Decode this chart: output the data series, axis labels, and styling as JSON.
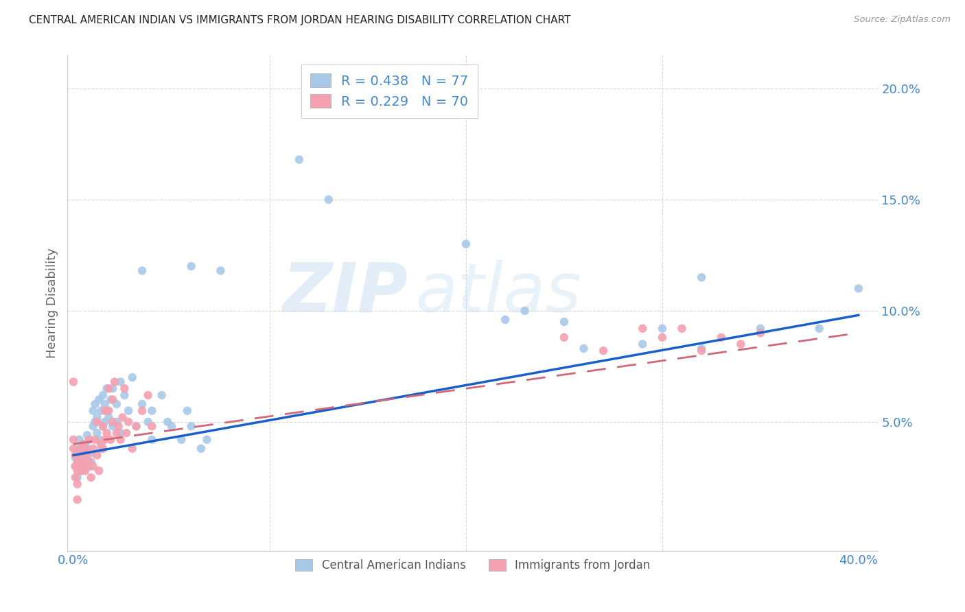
{
  "title": "CENTRAL AMERICAN INDIAN VS IMMIGRANTS FROM JORDAN HEARING DISABILITY CORRELATION CHART",
  "source": "Source: ZipAtlas.com",
  "ylabel": "Hearing Disability",
  "ytick_vals": [
    0.05,
    0.1,
    0.15,
    0.2
  ],
  "ytick_labels": [
    "5.0%",
    "10.0%",
    "15.0%",
    "20.0%"
  ],
  "xlim": [
    -0.003,
    0.41
  ],
  "ylim": [
    -0.008,
    0.215
  ],
  "legend_r1": "R = 0.438",
  "legend_n1": "N = 77",
  "legend_r2": "R = 0.229",
  "legend_n2": "N = 70",
  "color_blue": "#a8c8e8",
  "color_pink": "#f4a0b0",
  "color_line_blue": "#1a5fc8",
  "color_line_pink": "#d06878",
  "watermark_zip": "ZIP",
  "watermark_atlas": "atlas",
  "background": "#ffffff",
  "grid_color": "#d8d8d8",
  "tick_color": "#4488cc",
  "blue_scatter": [
    [
      0.001,
      0.034
    ],
    [
      0.002,
      0.036
    ],
    [
      0.003,
      0.038
    ],
    [
      0.003,
      0.042
    ],
    [
      0.004,
      0.032
    ],
    [
      0.004,
      0.028
    ],
    [
      0.005,
      0.034
    ],
    [
      0.005,
      0.03
    ],
    [
      0.006,
      0.036
    ],
    [
      0.006,
      0.04
    ],
    [
      0.007,
      0.038
    ],
    [
      0.007,
      0.044
    ],
    [
      0.008,
      0.03
    ],
    [
      0.008,
      0.042
    ],
    [
      0.009,
      0.036
    ],
    [
      0.009,
      0.032
    ],
    [
      0.01,
      0.048
    ],
    [
      0.01,
      0.055
    ],
    [
      0.011,
      0.05
    ],
    [
      0.011,
      0.058
    ],
    [
      0.012,
      0.052
    ],
    [
      0.012,
      0.045
    ],
    [
      0.013,
      0.06
    ],
    [
      0.013,
      0.042
    ],
    [
      0.014,
      0.055
    ],
    [
      0.014,
      0.038
    ],
    [
      0.015,
      0.062
    ],
    [
      0.015,
      0.048
    ],
    [
      0.016,
      0.058
    ],
    [
      0.016,
      0.05
    ],
    [
      0.017,
      0.065
    ],
    [
      0.017,
      0.055
    ],
    [
      0.018,
      0.052
    ],
    [
      0.019,
      0.06
    ],
    [
      0.02,
      0.065
    ],
    [
      0.02,
      0.048
    ],
    [
      0.022,
      0.058
    ],
    [
      0.022,
      0.05
    ],
    [
      0.024,
      0.068
    ],
    [
      0.024,
      0.045
    ],
    [
      0.026,
      0.062
    ],
    [
      0.028,
      0.055
    ],
    [
      0.03,
      0.07
    ],
    [
      0.032,
      0.048
    ],
    [
      0.035,
      0.058
    ],
    [
      0.038,
      0.05
    ],
    [
      0.04,
      0.055
    ],
    [
      0.04,
      0.042
    ],
    [
      0.045,
      0.062
    ],
    [
      0.048,
      0.05
    ],
    [
      0.05,
      0.048
    ],
    [
      0.055,
      0.042
    ],
    [
      0.058,
      0.055
    ],
    [
      0.06,
      0.048
    ],
    [
      0.065,
      0.038
    ],
    [
      0.068,
      0.042
    ],
    [
      0.002,
      0.025
    ],
    [
      0.001,
      0.03
    ],
    [
      0.06,
      0.12
    ],
    [
      0.075,
      0.118
    ],
    [
      0.115,
      0.168
    ],
    [
      0.13,
      0.15
    ],
    [
      0.2,
      0.13
    ],
    [
      0.22,
      0.096
    ],
    [
      0.23,
      0.1
    ],
    [
      0.25,
      0.095
    ],
    [
      0.26,
      0.083
    ],
    [
      0.29,
      0.085
    ],
    [
      0.3,
      0.092
    ],
    [
      0.32,
      0.115
    ],
    [
      0.32,
      0.083
    ],
    [
      0.35,
      0.092
    ],
    [
      0.38,
      0.092
    ],
    [
      0.4,
      0.11
    ],
    [
      0.035,
      0.118
    ]
  ],
  "pink_scatter": [
    [
      0.0,
      0.042
    ],
    [
      0.0,
      0.038
    ],
    [
      0.001,
      0.035
    ],
    [
      0.001,
      0.03
    ],
    [
      0.001,
      0.025
    ],
    [
      0.002,
      0.032
    ],
    [
      0.002,
      0.022
    ],
    [
      0.002,
      0.028
    ],
    [
      0.003,
      0.03
    ],
    [
      0.003,
      0.035
    ],
    [
      0.004,
      0.038
    ],
    [
      0.004,
      0.028
    ],
    [
      0.005,
      0.04
    ],
    [
      0.005,
      0.032
    ],
    [
      0.006,
      0.038
    ],
    [
      0.006,
      0.028
    ],
    [
      0.007,
      0.035
    ],
    [
      0.007,
      0.03
    ],
    [
      0.008,
      0.042
    ],
    [
      0.008,
      0.032
    ],
    [
      0.009,
      0.025
    ],
    [
      0.01,
      0.038
    ],
    [
      0.01,
      0.03
    ],
    [
      0.011,
      0.042
    ],
    [
      0.012,
      0.05
    ],
    [
      0.012,
      0.035
    ],
    [
      0.013,
      0.028
    ],
    [
      0.014,
      0.04
    ],
    [
      0.015,
      0.048
    ],
    [
      0.015,
      0.038
    ],
    [
      0.016,
      0.055
    ],
    [
      0.016,
      0.042
    ],
    [
      0.017,
      0.045
    ],
    [
      0.018,
      0.065
    ],
    [
      0.018,
      0.055
    ],
    [
      0.019,
      0.042
    ],
    [
      0.02,
      0.06
    ],
    [
      0.02,
      0.05
    ],
    [
      0.021,
      0.068
    ],
    [
      0.022,
      0.045
    ],
    [
      0.023,
      0.048
    ],
    [
      0.024,
      0.042
    ],
    [
      0.025,
      0.052
    ],
    [
      0.026,
      0.065
    ],
    [
      0.027,
      0.045
    ],
    [
      0.028,
      0.05
    ],
    [
      0.03,
      0.038
    ],
    [
      0.032,
      0.048
    ],
    [
      0.035,
      0.055
    ],
    [
      0.038,
      0.062
    ],
    [
      0.04,
      0.048
    ],
    [
      0.0,
      0.068
    ],
    [
      0.002,
      0.015
    ],
    [
      0.25,
      0.088
    ],
    [
      0.27,
      0.082
    ],
    [
      0.29,
      0.092
    ],
    [
      0.3,
      0.088
    ],
    [
      0.31,
      0.092
    ],
    [
      0.32,
      0.082
    ],
    [
      0.33,
      0.088
    ],
    [
      0.34,
      0.085
    ],
    [
      0.35,
      0.09
    ]
  ],
  "blue_line": [
    [
      0.0,
      0.035
    ],
    [
      0.4,
      0.098
    ]
  ],
  "pink_line": [
    [
      0.0,
      0.04
    ],
    [
      0.4,
      0.09
    ]
  ],
  "vert_line_x": 0.1,
  "vert_line2_x": 0.2,
  "vert_line3_x": 0.3
}
